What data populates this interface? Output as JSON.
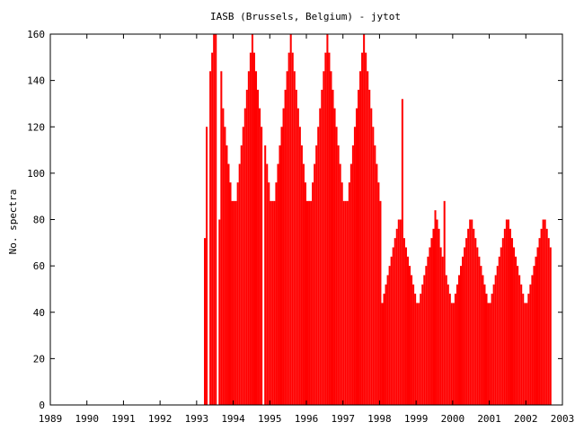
{
  "chart_data": {
    "type": "bar",
    "title": "IASB (Brussels, Belgium) - jytot",
    "xlabel": "",
    "ylabel": "No. spectra",
    "xlim": [
      1989,
      2003
    ],
    "ylim": [
      0,
      160
    ],
    "x_ticks": [
      "1989",
      "1990",
      "1991",
      "1992",
      "1993",
      "1994",
      "1995",
      "1996",
      "1997",
      "1998",
      "1999",
      "2000",
      "2001",
      "2002",
      "2003"
    ],
    "y_ticks": [
      "0",
      "20",
      "40",
      "60",
      "80",
      "100",
      "120",
      "140",
      "160"
    ],
    "grid": false,
    "legend": "none",
    "bar_color": "#ff0000",
    "x_dates": [
      1993.2,
      1993.25,
      1993.3,
      1993.35,
      1993.4,
      1993.45,
      1993.5,
      1993.55,
      1993.6,
      1993.65,
      1993.7,
      1993.75,
      1993.8,
      1993.85,
      1993.9,
      1993.95,
      1994.0,
      1994.05,
      1994.1,
      1994.15,
      1994.2,
      1994.25,
      1994.3,
      1994.35,
      1994.4,
      1994.45,
      1994.5,
      1994.55,
      1994.6,
      1994.65,
      1994.7,
      1994.75,
      1994.8,
      1994.85,
      1994.9,
      1994.95,
      1995.0,
      1995.05,
      1995.1,
      1995.15,
      1995.2,
      1995.25,
      1995.3,
      1995.35,
      1995.4,
      1995.45,
      1995.5,
      1995.55,
      1995.6,
      1995.65,
      1995.7,
      1995.75,
      1995.8,
      1995.85,
      1995.9,
      1995.95,
      1996.0,
      1996.05,
      1996.1,
      1996.15,
      1996.2,
      1996.25,
      1996.3,
      1996.35,
      1996.4,
      1996.45,
      1996.5,
      1996.55,
      1996.6,
      1996.65,
      1996.7,
      1996.75,
      1996.8,
      1996.85,
      1996.9,
      1996.95,
      1997.0,
      1997.05,
      1997.1,
      1997.15,
      1997.2,
      1997.25,
      1997.3,
      1997.35,
      1997.4,
      1997.45,
      1997.5,
      1997.55,
      1997.6,
      1997.65,
      1997.7,
      1997.75,
      1997.8,
      1997.85,
      1997.9,
      1997.95,
      1998.0,
      1998.05,
      1998.1,
      1998.15,
      1998.2,
      1998.25,
      1998.3,
      1998.35,
      1998.4,
      1998.45,
      1998.5,
      1998.55,
      1998.6,
      1998.65,
      1998.7,
      1998.75,
      1998.8,
      1998.85,
      1998.9,
      1998.95,
      1999.0,
      1999.05,
      1999.1,
      1999.15,
      1999.2,
      1999.25,
      1999.3,
      1999.35,
      1999.4,
      1999.45,
      1999.5,
      1999.55,
      1999.6,
      1999.65,
      1999.7,
      1999.75,
      1999.8,
      1999.85,
      1999.9,
      1999.95,
      2000.0,
      2000.05,
      2000.1,
      2000.15,
      2000.2,
      2000.25,
      2000.3,
      2000.35,
      2000.4,
      2000.45,
      2000.5,
      2000.55,
      2000.6,
      2000.65,
      2000.7,
      2000.75,
      2000.8,
      2000.85,
      2000.9,
      2000.95,
      2001.0,
      2001.05,
      2001.1,
      2001.15,
      2001.2,
      2001.25,
      2001.3,
      2001.35,
      2001.4,
      2001.45,
      2001.5,
      2001.55,
      2001.6,
      2001.65,
      2001.7,
      2001.75,
      2001.8,
      2001.85,
      2001.9,
      2001.95,
      2002.0,
      2002.05,
      2002.1,
      2002.15,
      2002.2,
      2002.25,
      2002.3,
      2002.35,
      2002.4,
      2002.45,
      2002.5,
      2002.55,
      2002.6,
      2002.65
    ],
    "values": [
      72,
      120,
      0,
      144,
      152,
      160,
      160,
      0,
      80,
      144,
      128,
      120,
      112,
      104,
      96,
      88,
      88,
      88,
      96,
      104,
      112,
      120,
      128,
      136,
      144,
      152,
      160,
      152,
      144,
      136,
      128,
      120,
      0,
      112,
      104,
      96,
      88,
      88,
      88,
      96,
      104,
      112,
      120,
      128,
      136,
      144,
      152,
      160,
      152,
      144,
      136,
      128,
      120,
      112,
      104,
      96,
      88,
      88,
      88,
      96,
      104,
      112,
      120,
      128,
      136,
      144,
      152,
      160,
      152,
      144,
      136,
      128,
      120,
      112,
      104,
      96,
      88,
      88,
      88,
      96,
      104,
      112,
      120,
      128,
      136,
      144,
      152,
      160,
      152,
      144,
      136,
      128,
      120,
      112,
      104,
      96,
      88,
      44,
      48,
      52,
      56,
      60,
      64,
      68,
      72,
      76,
      80,
      80,
      132,
      72,
      68,
      64,
      60,
      56,
      52,
      48,
      44,
      44,
      48,
      52,
      56,
      60,
      64,
      68,
      72,
      76,
      84,
      80,
      76,
      68,
      64,
      88,
      56,
      52,
      48,
      44,
      44,
      48,
      52,
      56,
      60,
      64,
      68,
      72,
      76,
      80,
      80,
      76,
      72,
      68,
      64,
      60,
      56,
      52,
      48,
      44,
      44,
      48,
      52,
      56,
      60,
      64,
      68,
      72,
      76,
      80,
      80,
      76,
      72,
      68,
      64,
      60,
      56,
      52,
      48,
      44,
      44,
      48,
      52,
      56,
      60,
      64,
      68,
      72,
      76,
      80,
      80,
      76,
      72,
      68
    ]
  }
}
